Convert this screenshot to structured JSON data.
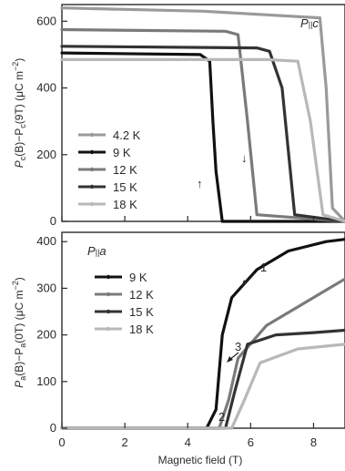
{
  "figure": {
    "xlabel": "Magnetic field (T)",
    "x_ticks": [
      "0",
      "2",
      "4",
      "6",
      "8"
    ]
  },
  "chart_data": [
    {
      "type": "line",
      "panel_label": "P||c",
      "ylabel": "P_c(B)−P_c(9T) (μC m⁻²)",
      "ylabel_parts": {
        "main": "P",
        "sub1": "c",
        "mid": "(B)−P",
        "sub2": "c",
        "tail": "(9T) (μC m",
        "sup": "−2",
        "end": ")"
      },
      "xlim": [
        0,
        9
      ],
      "ylim": [
        0,
        650
      ],
      "y_ticks": [
        "0",
        "200",
        "400",
        "600"
      ],
      "grid": false,
      "legend_position": "left",
      "series": [
        {
          "name": "4.2 K",
          "color": "#9a9a9a",
          "x": [
            0,
            4.5,
            8.2,
            8.4,
            8.6,
            9.0
          ],
          "y": [
            640,
            630,
            610,
            400,
            40,
            0
          ]
        },
        {
          "name": "9 K",
          "color": "#111111",
          "x": [
            0,
            4.4,
            4.7,
            4.8,
            4.9,
            5.1,
            9.0
          ],
          "y": [
            505,
            500,
            480,
            300,
            150,
            0,
            0
          ]
        },
        {
          "name": "12 K",
          "color": "#7a7a7a",
          "x": [
            0,
            5.2,
            5.6,
            5.9,
            6.2,
            9.0
          ],
          "y": [
            575,
            570,
            560,
            300,
            20,
            0
          ]
        },
        {
          "name": "15 K",
          "color": "#333333",
          "x": [
            0,
            6.2,
            6.6,
            7.0,
            7.4,
            9.0
          ],
          "y": [
            525,
            520,
            510,
            400,
            20,
            0
          ]
        },
        {
          "name": "18 K",
          "color": "#b8b8b8",
          "x": [
            0,
            6.5,
            7.5,
            7.9,
            8.3,
            9.0
          ],
          "y": [
            485,
            485,
            480,
            300,
            20,
            0
          ]
        }
      ],
      "annotations": [
        "↑",
        "↓"
      ]
    },
    {
      "type": "line",
      "panel_label": "P||a",
      "ylabel": "P_a(B)−P_a(0T) (μC m⁻²)",
      "ylabel_parts": {
        "main": "P",
        "sub1": "a",
        "mid": "(B)−P",
        "sub2": "a",
        "tail": "(0T) (μC m",
        "sup": "−2",
        "end": ")"
      },
      "xlim": [
        0,
        9
      ],
      "ylim": [
        0,
        420
      ],
      "y_ticks": [
        "0",
        "100",
        "200",
        "300",
        "400"
      ],
      "grid": false,
      "legend_position": "left",
      "series": [
        {
          "name": "9 K",
          "color": "#111111",
          "x": [
            0,
            4.6,
            4.9,
            5.1,
            5.4,
            6.2,
            7.2,
            8.4,
            9.0
          ],
          "y": [
            0,
            0,
            40,
            200,
            280,
            340,
            380,
            400,
            405
          ]
        },
        {
          "name": "12 K",
          "color": "#7a7a7a",
          "x": [
            0,
            5.0,
            5.3,
            5.6,
            6.5,
            7.5,
            8.5,
            9.0
          ],
          "y": [
            0,
            0,
            60,
            150,
            220,
            260,
            300,
            320
          ]
        },
        {
          "name": "15 K",
          "color": "#333333",
          "x": [
            0,
            5.2,
            5.5,
            5.9,
            6.8,
            8.0,
            9.0
          ],
          "y": [
            0,
            0,
            80,
            180,
            200,
            205,
            210
          ]
        },
        {
          "name": "18 K",
          "color": "#b8b8b8",
          "x": [
            0,
            5.4,
            5.8,
            6.3,
            7.5,
            9.0
          ],
          "y": [
            0,
            0,
            60,
            140,
            170,
            180
          ]
        }
      ],
      "annotations": [
        "1",
        "2",
        "3"
      ]
    }
  ]
}
